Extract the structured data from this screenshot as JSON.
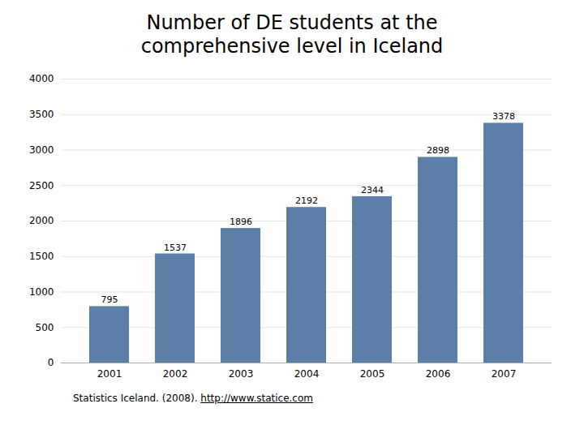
{
  "chart_data": {
    "type": "bar",
    "title": "Number of DE students at the\ncomprehensive level in Iceland",
    "categories": [
      "2001",
      "2002",
      "2003",
      "2004",
      "2005",
      "2006",
      "2007"
    ],
    "values": [
      795,
      1537,
      1896,
      2192,
      2344,
      2898,
      3378
    ],
    "color": "#5B7FA6",
    "ylim": [
      0,
      4000
    ],
    "yticks": [
      0,
      500,
      1000,
      1500,
      2000,
      2500,
      3000,
      3500,
      4000
    ],
    "grid": true,
    "data_labels": true,
    "annotations": [
      "Statistics Iceland. (2008).",
      "http://www.statice.com"
    ]
  }
}
